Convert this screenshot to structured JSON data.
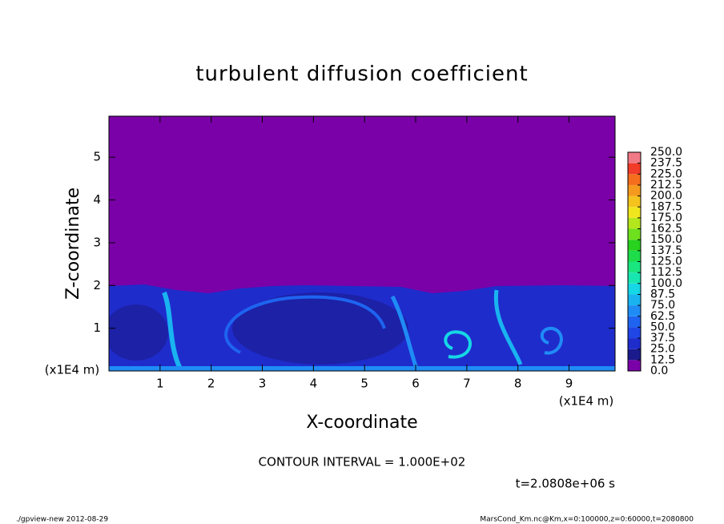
{
  "chart_data": {
    "type": "contour",
    "title": "turbulent diffusion coefficient",
    "x_label": "X-coordinate",
    "y_label": "Z-coordinate",
    "x_unit_left": "(x1E4 m)",
    "x_unit_right": "(x1E4 m)",
    "xlim": [
      0,
      9.9
    ],
    "ylim": [
      0,
      5.96
    ],
    "xticks": [
      1,
      2,
      3,
      4,
      5,
      6,
      7,
      8,
      9
    ],
    "yticks": [
      1,
      2,
      3,
      4,
      5
    ],
    "colorbar": {
      "levels": [
        {
          "value": 0,
          "label": "0.0"
        },
        {
          "value": 12.5,
          "label": "12.5"
        },
        {
          "value": 25,
          "label": "25.0"
        },
        {
          "value": 37.5,
          "label": "37.5"
        },
        {
          "value": 50,
          "label": "50.0"
        },
        {
          "value": 62.5,
          "label": "62.5"
        },
        {
          "value": 75,
          "label": "75.0"
        },
        {
          "value": 87.5,
          "label": "87.5"
        },
        {
          "value": 100,
          "label": "100.0"
        },
        {
          "value": 112.5,
          "label": "112.5"
        },
        {
          "value": 125,
          "label": "125.0"
        },
        {
          "value": 137.5,
          "label": "137.5"
        },
        {
          "value": 150,
          "label": "150.0"
        },
        {
          "value": 162.5,
          "label": "162.5"
        },
        {
          "value": 175,
          "label": "175.0"
        },
        {
          "value": 187.5,
          "label": "187.5"
        },
        {
          "value": 200,
          "label": "200.0"
        },
        {
          "value": 212.5,
          "label": "212.5"
        },
        {
          "value": 225,
          "label": "225.0"
        },
        {
          "value": 237.5,
          "label": "237.5"
        },
        {
          "value": 250,
          "label": "250.0"
        }
      ],
      "colors": [
        "#7a00a8",
        "#1a1a8c",
        "#1f2ccc",
        "#2046e6",
        "#1e64f0",
        "#1f8cf5",
        "#19b4f0",
        "#16d7e6",
        "#18e6b0",
        "#1ae680",
        "#1edc4a",
        "#28d21e",
        "#6ee01e",
        "#b4e61e",
        "#f0e61e",
        "#f5c31e",
        "#f59a1e",
        "#f56e1e",
        "#f03c28",
        "#f07a86"
      ]
    },
    "contour_interval": "CONTOUR INTERVAL = 1.000E+02",
    "time_label": "t=2.0808e+06 s",
    "footer_left": "./gpview-new   2012-08-29",
    "footer_right": "MarsCond_Km.nc@Km,x=0:100000,z=0:60000,t=2080800"
  }
}
